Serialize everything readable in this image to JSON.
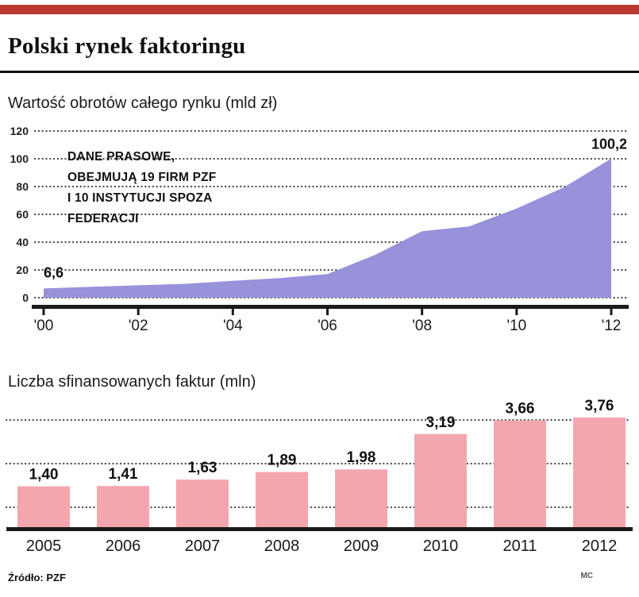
{
  "header": {
    "title": "Polski rynek faktoringu"
  },
  "colors": {
    "accent_red": "#ba3a31",
    "area_fill": "#9792da",
    "bar_fill": "#f3a6ad",
    "axis": "#1a1a1a",
    "grid_dot": "#4a4a4a"
  },
  "footer": {
    "source": "Źródło: PZF",
    "credit": "MC"
  },
  "chart_data": [
    {
      "type": "area",
      "title": "Wartość obrotów całego rynku (mld zł)",
      "x": [
        2000,
        2001,
        2002,
        2003,
        2004,
        2005,
        2006,
        2007,
        2008,
        2009,
        2010,
        2011,
        2012
      ],
      "values": [
        6.6,
        7.8,
        8.9,
        10.0,
        12.1,
        14.2,
        17.0,
        30.7,
        47.9,
        51.4,
        64.2,
        79.4,
        100.2
      ],
      "x_ticks": [
        2000,
        2002,
        2004,
        2006,
        2008,
        2010,
        2012
      ],
      "x_tick_labels": [
        "'00",
        "'02",
        "'04",
        "'06",
        "'08",
        "'10",
        "'12"
      ],
      "y_ticks": [
        0,
        20,
        40,
        60,
        80,
        100,
        120
      ],
      "ylim": [
        0,
        120
      ],
      "grid": "dotted horizontal",
      "legend": "none",
      "annotation": [
        "DANE PRASOWE,",
        "OBEJMUJĄ 19 FIRM PZF",
        "I 10 INSTYTUCJI SPOZA",
        "FEDERACJI"
      ],
      "point_labels": [
        {
          "x": 2000,
          "value": 6.6,
          "text": "6,6"
        },
        {
          "x": 2012,
          "value": 100.2,
          "text": "100,2"
        }
      ]
    },
    {
      "type": "bar",
      "title": "Liczba sfinansowanych faktur (mln)",
      "categories": [
        "2005",
        "2006",
        "2007",
        "2008",
        "2009",
        "2010",
        "2011",
        "2012"
      ],
      "values": [
        1.4,
        1.41,
        1.63,
        1.89,
        1.98,
        3.19,
        3.66,
        3.76
      ],
      "value_labels": [
        "1,40",
        "1,41",
        "1,63",
        "1,89",
        "1,98",
        "3,19",
        "3,66",
        "3,76"
      ],
      "ylim": [
        0,
        4
      ],
      "grid": "dotted horizontal",
      "legend": "none"
    }
  ]
}
